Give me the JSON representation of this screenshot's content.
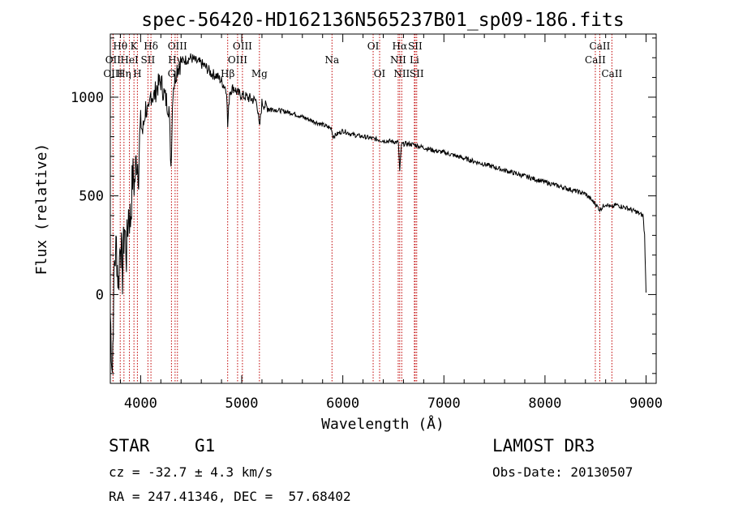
{
  "chart_data": {
    "type": "line",
    "title": "spec-56420-HD162136N565237B01_sp09-186.fits",
    "xlabel": "Wavelength (Å)",
    "ylabel": "Flux (relative)",
    "xlim": [
      3700,
      9100
    ],
    "ylim": [
      -450,
      1320
    ],
    "xticks": [
      4000,
      5000,
      6000,
      7000,
      8000,
      9000
    ],
    "xtick_labels": [
      "4000",
      "5000",
      "6000",
      "7000",
      "8000",
      "9000"
    ],
    "yticks": [
      0,
      500,
      1000
    ],
    "ytick_labels": [
      "0",
      "500",
      "1000"
    ],
    "grid": false,
    "series": [
      {
        "name": "flux",
        "x": [
          3700,
          3720,
          3740,
          3760,
          3780,
          3800,
          3820,
          3840,
          3860,
          3880,
          3900,
          3920,
          3940,
          3960,
          3980,
          4000,
          4020,
          4050,
          4080,
          4100,
          4130,
          4160,
          4200,
          4240,
          4280,
          4300,
          4320,
          4340,
          4360,
          4400,
          4450,
          4500,
          4550,
          4600,
          4650,
          4700,
          4750,
          4800,
          4850,
          4861,
          4880,
          4920,
          4960,
          5000,
          5050,
          5100,
          5150,
          5175,
          5200,
          5250,
          5300,
          5400,
          5500,
          5600,
          5700,
          5800,
          5890,
          5900,
          6000,
          6100,
          6200,
          6300,
          6400,
          6500,
          6550,
          6563,
          6580,
          6620,
          6700,
          6800,
          6900,
          7000,
          7200,
          7400,
          7600,
          7800,
          8000,
          8200,
          8400,
          8498,
          8542,
          8600,
          8662,
          8700,
          8800,
          8900,
          8970,
          8985,
          9000
        ],
        "y": [
          -100,
          -380,
          150,
          250,
          50,
          300,
          100,
          350,
          200,
          420,
          380,
          600,
          560,
          700,
          650,
          880,
          820,
          950,
          900,
          1020,
          1000,
          1050,
          1080,
          1000,
          950,
          650,
          1050,
          1100,
          1150,
          1180,
          1190,
          1200,
          1180,
          1170,
          1150,
          1120,
          1110,
          1080,
          1040,
          850,
          1030,
          1050,
          1020,
          1010,
          1000,
          990,
          980,
          840,
          970,
          950,
          940,
          930,
          920,
          900,
          880,
          860,
          840,
          800,
          830,
          810,
          800,
          790,
          780,
          775,
          770,
          620,
          760,
          765,
          760,
          745,
          730,
          720,
          690,
          660,
          630,
          600,
          570,
          540,
          510,
          460,
          430,
          460,
          440,
          455,
          440,
          420,
          400,
          300,
          10
        ]
      }
    ],
    "lines": [
      {
        "label": "Hθ",
        "x": 3798,
        "row": 1
      },
      {
        "label": "OII",
        "x": 3727,
        "row": 2
      },
      {
        "label": "OIII",
        "x": 3727,
        "row": 3
      },
      {
        "label": "Hη",
        "x": 3835,
        "row": 3
      },
      {
        "label": "HeI",
        "x": 3889,
        "row": 2
      },
      {
        "label": "K",
        "x": 3934,
        "row": 1
      },
      {
        "label": "SII",
        "x": 4072,
        "row": 2
      },
      {
        "label": "H",
        "x": 3968,
        "row": 3
      },
      {
        "label": "Hδ",
        "x": 4102,
        "row": 1
      },
      {
        "label": "OIII",
        "x": 4364,
        "row": 1
      },
      {
        "label": "Hγ",
        "x": 4341,
        "row": 2
      },
      {
        "label": "G",
        "x": 4305,
        "row": 3
      },
      {
        "label": "Hβ",
        "x": 4861,
        "row": 3
      },
      {
        "label": "OIII",
        "x": 5007,
        "row": 1
      },
      {
        "label": "OIII",
        "x": 4959,
        "row": 2
      },
      {
        "label": "Mg",
        "x": 5175,
        "row": 3
      },
      {
        "label": "Na",
        "x": 5893,
        "row": 2
      },
      {
        "label": "OI",
        "x": 6300,
        "row": 1
      },
      {
        "label": "OI",
        "x": 6364,
        "row": 3
      },
      {
        "label": "Hα",
        "x": 6563,
        "row": 1
      },
      {
        "label": "NII",
        "x": 6548,
        "row": 2
      },
      {
        "label": "NII",
        "x": 6583,
        "row": 3
      },
      {
        "label": "SII",
        "x": 6716,
        "row": 1
      },
      {
        "label": "Li",
        "x": 6708,
        "row": 2
      },
      {
        "label": "SII",
        "x": 6731,
        "row": 3
      },
      {
        "label": "CaII",
        "x": 8542,
        "row": 1
      },
      {
        "label": "CaII",
        "x": 8498,
        "row": 2
      },
      {
        "label": "CaII",
        "x": 8662,
        "row": 3
      }
    ]
  },
  "info": {
    "object_class": "STAR",
    "subclass": "G1",
    "cz": "cz = -32.7 ± 4.3 km/s",
    "coords": "RA = 247.41346, DEC =  57.68402",
    "survey": "LAMOST DR3",
    "obs_date": "Obs-Date: 20130507"
  },
  "colors": {
    "spectrum": "#000000",
    "line_marker": "#c00000",
    "text": "#000000"
  }
}
